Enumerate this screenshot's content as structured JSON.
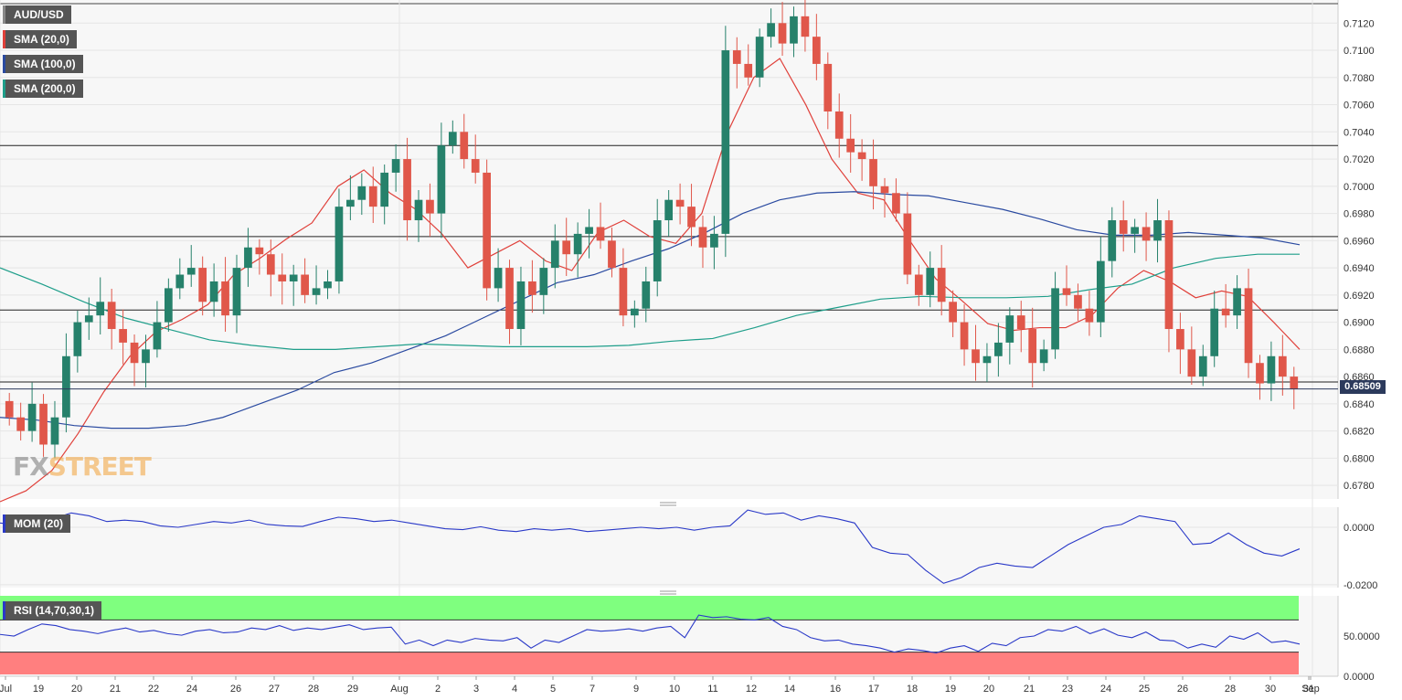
{
  "legend": {
    "symbol": "AUD/USD",
    "sma20": "SMA (20,0)",
    "sma100": "SMA (100,0)",
    "sma200": "SMA (200,0)"
  },
  "colors": {
    "bull": "#26816b",
    "bear": "#e0574a",
    "sma20": "#e0403a",
    "sma100": "#2a4aa0",
    "sma200": "#1e9e8a",
    "mom": "#2a39c8",
    "rsi": "#2a39c8",
    "rsi_upper_zone": "#7fff7f",
    "rsi_lower_zone": "#ff7f7f"
  },
  "watermark": {
    "fx": "FX",
    "street": "STREET"
  },
  "price_axis": {
    "ticks": [
      "0.7120",
      "0.7100",
      "0.7080",
      "0.7060",
      "0.7040",
      "0.7020",
      "0.7000",
      "0.6980",
      "0.6960",
      "0.6940",
      "0.6920",
      "0.6900",
      "0.6880",
      "0.6860",
      "0.6840",
      "0.6820",
      "0.6800",
      "0.6780"
    ],
    "current_price_label": "0.68509"
  },
  "x_axis": {
    "labels": [
      "Jul",
      "19",
      "20",
      "21",
      "22",
      "24",
      "26",
      "27",
      "28",
      "29",
      "Aug",
      "2",
      "3",
      "4",
      "5",
      "7",
      "9",
      "10",
      "11",
      "12",
      "14",
      "16",
      "17",
      "18",
      "19",
      "20",
      "21",
      "23",
      "24",
      "25",
      "26",
      "28",
      "30",
      "31",
      "Sep"
    ]
  },
  "mom_panel": {
    "label": "MOM (20)",
    "ticks": [
      "0.0000",
      "-0.0200"
    ]
  },
  "rsi_panel": {
    "label": "RSI (14,70,30,1)",
    "ticks": [
      "50.0000",
      "0.0000"
    ]
  },
  "chart_data": [
    {
      "type": "candlestick",
      "title": "AUD/USD",
      "ylim": [
        0.677,
        0.7137
      ],
      "horizontal_levels": [
        0.703,
        0.6963,
        0.6909,
        0.6856
      ],
      "current_price": 0.68509,
      "close_path": [
        0.683,
        0.682,
        0.684,
        0.681,
        0.683,
        0.6875,
        0.69,
        0.6905,
        0.6915,
        0.6895,
        0.6885,
        0.687,
        0.688,
        0.69,
        0.6925,
        0.6935,
        0.694,
        0.6915,
        0.693,
        0.6905,
        0.694,
        0.6955,
        0.695,
        0.6935,
        0.693,
        0.6935,
        0.692,
        0.6925,
        0.693,
        0.6985,
        0.699,
        0.7,
        0.6985,
        0.701,
        0.702,
        0.6975,
        0.699,
        0.698,
        0.703,
        0.704,
        0.702,
        0.701,
        0.6925,
        0.694,
        0.6895,
        0.693,
        0.692,
        0.694,
        0.696,
        0.695,
        0.6965,
        0.697,
        0.696,
        0.694,
        0.6905,
        0.691,
        0.693,
        0.6975,
        0.699,
        0.6985,
        0.697,
        0.6955,
        0.6965,
        0.71,
        0.709,
        0.708,
        0.711,
        0.712,
        0.7105,
        0.7125,
        0.711,
        0.709,
        0.7055,
        0.7035,
        0.7025,
        0.702,
        0.7,
        0.6995,
        0.698,
        0.6935,
        0.692,
        0.694,
        0.6915,
        0.69,
        0.688,
        0.687,
        0.6875,
        0.6885,
        0.6905,
        0.6895,
        0.687,
        0.688,
        0.6925,
        0.692,
        0.691,
        0.69,
        0.6945,
        0.6975,
        0.6965,
        0.697,
        0.696,
        0.6975,
        0.6895,
        0.688,
        0.686,
        0.6875,
        0.691,
        0.6905,
        0.6925,
        0.687,
        0.6855,
        0.6875,
        0.686,
        0.6851
      ],
      "series": [
        {
          "name": "SMA (20,0)",
          "values": [
            0.6768,
            0.6776,
            0.6791,
            0.6818,
            0.6849,
            0.6875,
            0.6893,
            0.6902,
            0.6913,
            0.6935,
            0.6947,
            0.6961,
            0.6973,
            0.7,
            0.7012,
            0.6995,
            0.6983,
            0.6965,
            0.694,
            0.695,
            0.696,
            0.6945,
            0.6938,
            0.6966,
            0.6975,
            0.6963,
            0.6958,
            0.698,
            0.704,
            0.708,
            0.7094,
            0.706,
            0.702,
            0.6995,
            0.699,
            0.696,
            0.6932,
            0.6916,
            0.6899,
            0.6894,
            0.6896,
            0.6896,
            0.6905,
            0.6925,
            0.6938,
            0.693,
            0.6918,
            0.6923,
            0.6919,
            0.69,
            0.688
          ]
        },
        {
          "name": "SMA (100,0)",
          "values": [
            0.683,
            0.6828,
            0.6824,
            0.6822,
            0.6822,
            0.6824,
            0.683,
            0.684,
            0.685,
            0.6863,
            0.687,
            0.688,
            0.689,
            0.6903,
            0.6916,
            0.6929,
            0.6935,
            0.6945,
            0.6954,
            0.6966,
            0.698,
            0.699,
            0.6995,
            0.6996,
            0.6994,
            0.6993,
            0.6988,
            0.6983,
            0.6976,
            0.6968,
            0.6964,
            0.6964,
            0.6966,
            0.6964,
            0.6962,
            0.6957
          ]
        },
        {
          "name": "SMA (200,0)",
          "values": [
            0.694,
            0.6928,
            0.6915,
            0.6903,
            0.6895,
            0.6887,
            0.6883,
            0.688,
            0.688,
            0.6882,
            0.6884,
            0.6883,
            0.6882,
            0.6882,
            0.6882,
            0.6883,
            0.6886,
            0.6888,
            0.6896,
            0.6905,
            0.6911,
            0.6917,
            0.6919,
            0.6918,
            0.6918,
            0.6919,
            0.6924,
            0.6928,
            0.694,
            0.6947,
            0.695,
            0.695
          ]
        }
      ]
    },
    {
      "type": "line",
      "title": "MOM (20)",
      "ylim": [
        -0.021,
        0.007
      ],
      "series": [
        {
          "name": "MOM (20)",
          "values": [
            0.0015,
            0.0008,
            0.0005,
            0.003,
            0.005,
            0.004,
            0.002,
            0.0025,
            0.002,
            0.0005,
            0.0,
            0.001,
            0.002,
            0.0015,
            0.0025,
            0.001,
            0.0005,
            0.0003,
            0.002,
            0.0035,
            0.003,
            0.002,
            0.0025,
            0.0015,
            0.0005,
            -0.0005,
            -0.0008,
            0.0002,
            -0.001,
            -0.0015,
            -0.0005,
            -0.001,
            -0.0005,
            -0.0015,
            -0.001,
            -0.0005,
            0.0,
            -0.0005,
            0.0,
            -0.001,
            0.0,
            0.0005,
            0.006,
            0.0045,
            0.005,
            0.0025,
            0.004,
            0.003,
            0.0015,
            -0.007,
            -0.009,
            -0.0095,
            -0.015,
            -0.0195,
            -0.0175,
            -0.014,
            -0.0125,
            -0.0135,
            -0.014,
            -0.01,
            -0.006,
            -0.003,
            0.0,
            0.001,
            0.004,
            0.003,
            0.002,
            -0.006,
            -0.0055,
            -0.002,
            -0.006,
            -0.009,
            -0.01,
            -0.0075
          ]
        }
      ]
    },
    {
      "type": "line",
      "title": "RSI (14,70,30,1)",
      "ylim": [
        0,
        100
      ],
      "zones": [
        {
          "from": 70,
          "to": 100
        },
        {
          "from": 0,
          "to": 30
        }
      ],
      "series": [
        {
          "name": "RSI (14,70,30,1)",
          "values": [
            52,
            50,
            58,
            65,
            63,
            58,
            56,
            53,
            57,
            60,
            55,
            57,
            53,
            51,
            56,
            58,
            54,
            55,
            60,
            58,
            63,
            57,
            60,
            58,
            61,
            64,
            58,
            60,
            61,
            40,
            45,
            38,
            45,
            42,
            47,
            45,
            44,
            48,
            35,
            45,
            42,
            50,
            58,
            56,
            57,
            59,
            56,
            60,
            62,
            48,
            76,
            73,
            74,
            71,
            70,
            73,
            62,
            58,
            48,
            44,
            45,
            40,
            38,
            35,
            30,
            34,
            32,
            29,
            35,
            38,
            31,
            41,
            38,
            48,
            50,
            58,
            56,
            62,
            53,
            59,
            51,
            48,
            55,
            45,
            44,
            35,
            40,
            36,
            50,
            46,
            54,
            42,
            44,
            40
          ]
        }
      ]
    }
  ]
}
